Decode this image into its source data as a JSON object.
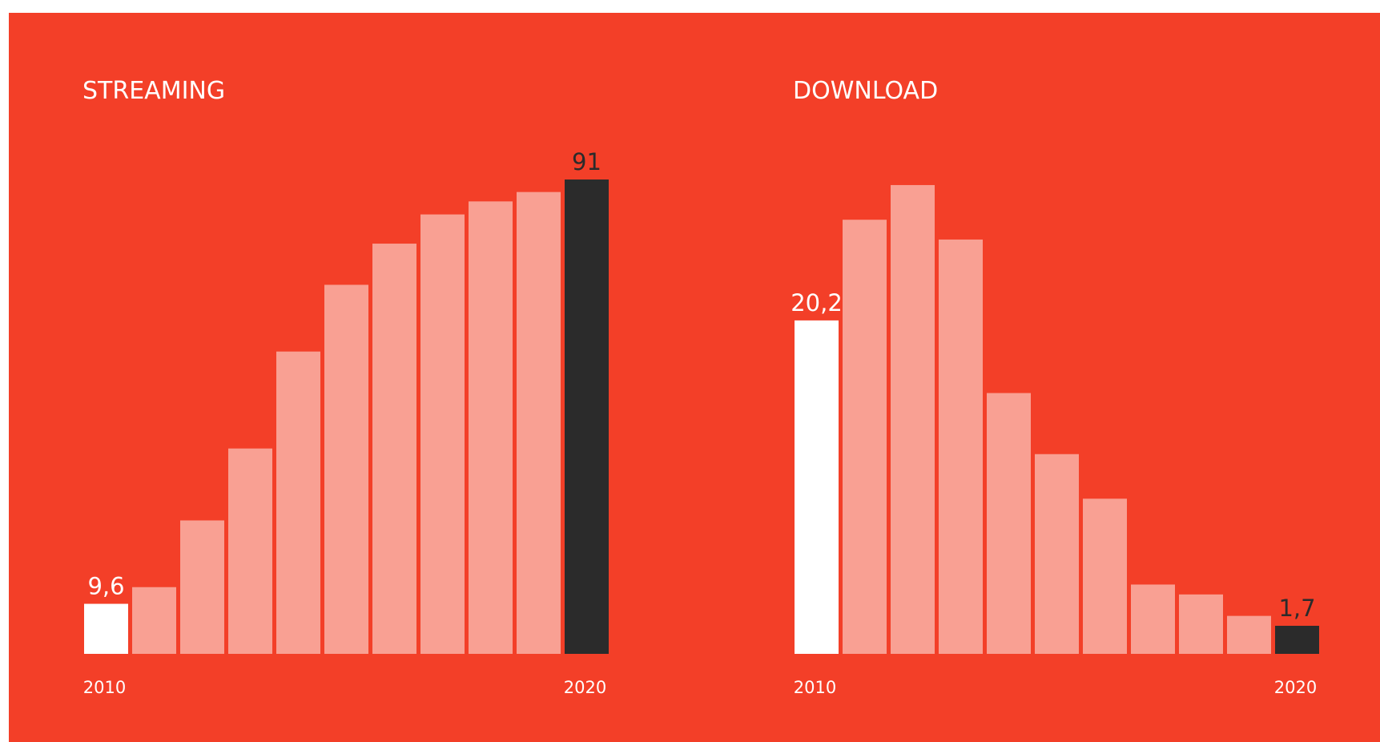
{
  "chart_data": [
    {
      "type": "bar",
      "title": "STREAMING",
      "categories": [
        "2010",
        null,
        null,
        null,
        null,
        null,
        null,
        null,
        null,
        null,
        "2020"
      ],
      "values": [
        9.6,
        12.8,
        25.6,
        39.4,
        58.0,
        70.8,
        78.7,
        84.3,
        86.8,
        88.6,
        91
      ],
      "value_labels": [
        "9,6",
        null,
        null,
        null,
        null,
        null,
        null,
        null,
        null,
        null,
        "91"
      ],
      "colors": [
        "#ffffff",
        "#f9a093",
        "#f9a093",
        "#f9a093",
        "#f9a093",
        "#f9a093",
        "#f9a093",
        "#f9a093",
        "#f9a093",
        "#f9a093",
        "#2b2b2b"
      ],
      "ylim": [
        0,
        95
      ]
    },
    {
      "type": "bar",
      "title": "DOWNLOAD",
      "categories": [
        "2010",
        null,
        null,
        null,
        null,
        null,
        null,
        null,
        null,
        null,
        "2020"
      ],
      "values": [
        20.2,
        26.3,
        28.4,
        25.1,
        15.8,
        12.1,
        9.4,
        4.2,
        3.6,
        2.3,
        1.7
      ],
      "value_labels": [
        "20,2",
        null,
        null,
        null,
        null,
        null,
        null,
        null,
        null,
        null,
        "1,7"
      ],
      "colors": [
        "#ffffff",
        "#f9a093",
        "#f9a093",
        "#f9a093",
        "#f9a093",
        "#f9a093",
        "#f9a093",
        "#f9a093",
        "#f9a093",
        "#f9a093",
        "#2b2b2b"
      ],
      "ylim": [
        0,
        30
      ]
    }
  ]
}
